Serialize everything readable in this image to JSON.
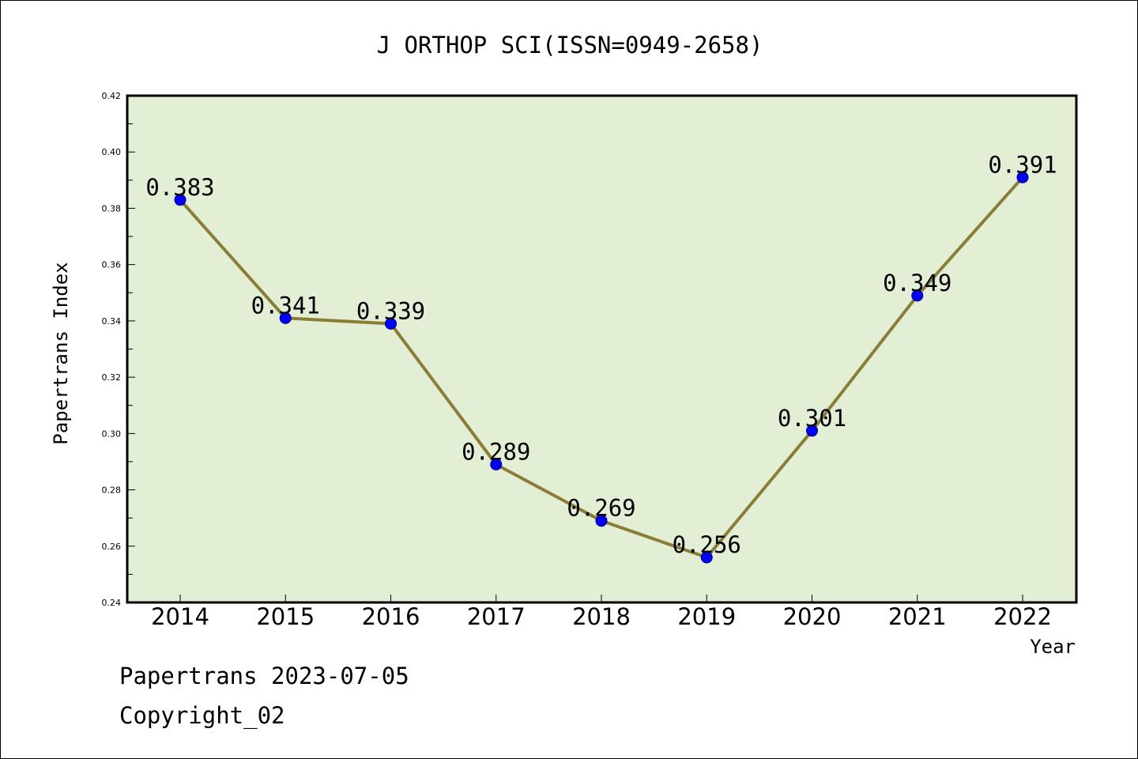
{
  "colors": {
    "plot_background": "#e2efd5",
    "line": "#8b7d35",
    "marker": "#0000ff",
    "marker_edge": "#000080",
    "frame": "#000000"
  },
  "footer": {
    "line1": "Papertrans 2023-07-05",
    "line2": "Copyright_02"
  },
  "chart_data": {
    "type": "line",
    "title": "J ORTHOP SCI(ISSN=0949-2658)",
    "xlabel": "Year",
    "ylabel": "Papertrans Index",
    "categories": [
      "2014",
      "2015",
      "2016",
      "2017",
      "2018",
      "2019",
      "2020",
      "2021",
      "2022"
    ],
    "series": [
      {
        "values": [
          0.383,
          0.341,
          0.339,
          0.289,
          0.269,
          0.256,
          0.301,
          0.349,
          0.391
        ],
        "labels": [
          "0.383",
          "0.341",
          "0.339",
          "0.289",
          "0.269",
          "0.256",
          "0.301",
          "0.349",
          "0.391"
        ]
      }
    ],
    "ylim": [
      0.24,
      0.42
    ],
    "yticks": [
      "0.24",
      "0.26",
      "0.28",
      "0.30",
      "0.32",
      "0.34",
      "0.36",
      "0.38",
      "0.40",
      "0.42"
    ],
    "grid": false,
    "legend": "none"
  }
}
